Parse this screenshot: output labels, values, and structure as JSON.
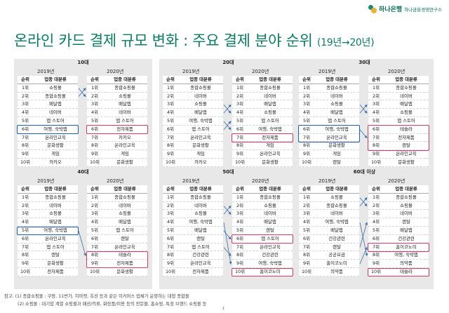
{
  "logo": {
    "bank": "하나은행",
    "institute": "하나금융경영연구소"
  },
  "title": {
    "main": "온라인 카드 결제 규모 변화 : 주요 결제 분야 순위",
    "sub": "(19년→20년)"
  },
  "headers": {
    "rank": "순위",
    "category": "업종 대분류"
  },
  "groups": [
    {
      "label": "10대",
      "year_a": "2019년",
      "year_b": "2020년",
      "ranks": [
        "1위",
        "2위",
        "3위",
        "4위",
        "5위",
        "6위",
        "7위",
        "8위",
        "9위",
        "10위"
      ],
      "list_a": [
        "쇼핑몰",
        "종합쇼핑몰",
        "배달앱",
        "네이버",
        "앱 스토어",
        "여행, 숙박앱",
        "온라인교육",
        "문화생활",
        "게임",
        "카카오"
      ],
      "list_b": [
        "종합쇼핑몰",
        "쇼핑몰",
        "배달앱",
        "네이버",
        "앱 스토어",
        "전자제품",
        "카카오",
        "온라인교육",
        "게임",
        "문화생활"
      ]
    },
    {
      "label": "20대",
      "year_a": "2019년",
      "year_b": "2020년",
      "ranks": [
        "1위",
        "2위",
        "3위",
        "4위",
        "5위",
        "6위",
        "7위",
        "8위",
        "9위",
        "10위"
      ],
      "list_a": [
        "종합쇼핑몰",
        "네이버",
        "쇼핑몰",
        "배달앱",
        "여행, 숙박앱",
        "앱 스토어",
        "온라인교육",
        "문화생활",
        "게임",
        "카카오"
      ],
      "list_b": [
        "종합쇼핑몰",
        "네이버",
        "배달앱",
        "쇼핑몰",
        "앱 스토어",
        "여행, 숙박앱",
        "전자제품",
        "게임",
        "온라인교육",
        "문화생활"
      ]
    },
    {
      "label": "30대",
      "year_a": "2019년",
      "year_b": "2020년",
      "ranks": [
        "1위",
        "2위",
        "3위",
        "4위",
        "5위",
        "6위",
        "7위",
        "8위",
        "9위",
        "10위"
      ],
      "list_a": [
        "종합쇼핑몰",
        "네이버",
        "쇼핑몰",
        "배달앱",
        "앱 스토어",
        "여행, 숙박앱",
        "온라인교육",
        "문화생활",
        "게임",
        "렌탈"
      ],
      "list_b": [
        "종합쇼핑몰",
        "네이버",
        "배달앱",
        "쇼핑몰",
        "앱 스토어",
        "테슬라",
        "전자제품",
        "렌탈",
        "온라인교육",
        "문화생활"
      ]
    },
    {
      "label": "40대",
      "year_a": "2019년",
      "year_b": "2020년",
      "ranks": [
        "1위",
        "2위",
        "3위",
        "4위",
        "5위",
        "6위",
        "7위",
        "8위",
        "9위",
        "10위"
      ],
      "list_a": [
        "종합쇼핑몰",
        "네이버",
        "쇼핑몰",
        "배달앱",
        "여행, 숙박앱",
        "온라인교육",
        "앱 스토어",
        "렌탈",
        "문화생활",
        "전자제품"
      ],
      "list_b": [
        "종합쇼핑몰",
        "네이버",
        "쇼핑몰",
        "배달앱",
        "앱 스토어",
        "렌탈",
        "온라인교육",
        "테슬라",
        "전자제품",
        "문화생활"
      ]
    },
    {
      "label": "50대",
      "year_a": "2019년",
      "year_b": "2020년",
      "ranks": [
        "1위",
        "2위",
        "3위",
        "4위",
        "5위",
        "6위",
        "7위",
        "8위",
        "9위",
        "10위"
      ],
      "list_a": [
        "종합쇼핑몰",
        "네이버",
        "쇼핑몰",
        "여행, 숙박앱",
        "배달앱",
        "렌탈",
        "앱 스토어",
        "건강관련",
        "온라인교육",
        "전자제품"
      ],
      "list_b": [
        "종합쇼핑몰",
        "쇼핑몰",
        "네이버",
        "배달앱",
        "렌탈",
        "앱 스토어",
        "온라인교육",
        "건강관련",
        "여행, 숙박앱",
        "홈이코노미"
      ]
    },
    {
      "label": "60대 이상",
      "year_a": "2019년",
      "year_b": "2020년",
      "ranks": [
        "1위",
        "2위",
        "3위",
        "4위",
        "5위",
        "6위",
        "7위",
        "8위",
        "9위",
        "10위"
      ],
      "list_a": [
        "쇼핑몰",
        "종합쇼핑몰",
        "네이버",
        "여행, 숙박앱",
        "배달앱",
        "건강관련",
        "렌탈",
        "공공요금",
        "홈이코노미",
        "의약품"
      ],
      "list_b": [
        "종합쇼핑몰",
        "쇼핑몰",
        "네이버",
        "렌탈",
        "배달앱",
        "건강관련",
        "홈이코노미",
        "여행, 숙박앱",
        "의약품",
        "테슬라"
      ]
    }
  ],
  "notes": {
    "line1": "참고. (1) 종합쇼핑몰 : 쿠팡, 11번가, 지마켓, 옥션 등과 같은 이커머스 업체가 운영하는 대형 종합몰",
    "line2": "(2) 쇼핑몰 : 대기업 계열 쇼핑몰과 패션/의류, 화장품/미용 등의 전문몰, 홈쇼핑, 특정 브랜드 쇼핑몰 등"
  },
  "page_number": "1",
  "colors": {
    "title": "#0d7a62",
    "highlight_2019": "#1e5fb5",
    "highlight_2020": "#d93a63",
    "panel": "#e8e8e8"
  }
}
